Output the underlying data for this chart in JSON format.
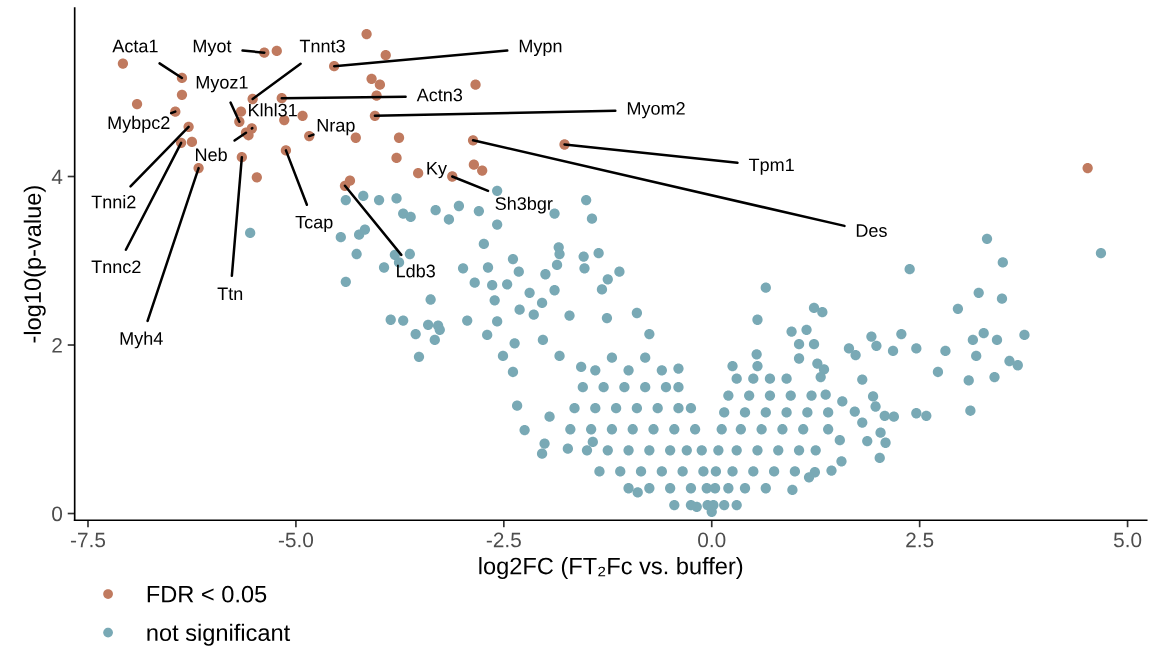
{
  "chart_data": {
    "type": "scatter",
    "xlabel": "log2FC (FT₂Fc vs. buffer)",
    "ylabel": "-log10(p-value)",
    "xlim": [
      -7.66,
      5.23
    ],
    "ylim": [
      -0.08,
      6.0
    ],
    "xticks": [
      {
        "value": -7.5,
        "label": "-7.5"
      },
      {
        "value": -5.0,
        "label": "-5.0"
      },
      {
        "value": -2.5,
        "label": "-2.5"
      },
      {
        "value": 0,
        "label": "0.0"
      },
      {
        "value": 2.5,
        "label": "2.5"
      },
      {
        "value": 5.0,
        "label": "5.0"
      }
    ],
    "yticks": [
      0,
      2,
      4
    ],
    "grid": false,
    "legend": "bottom",
    "marker": "circle",
    "series": [
      {
        "name": "FDR < 0.05",
        "color": "#c07a5f",
        "x": [
          -4.15,
          -5.38,
          -5.23,
          -3.92,
          -4.54,
          -7.08,
          -6.37,
          -4.09,
          -3.99,
          -2.84,
          -6.37,
          -5.52,
          -5.17,
          -4.03,
          -6.91,
          -6.45,
          -5.66,
          -5.68,
          -5.14,
          -4.92,
          -4.05,
          -6.29,
          -5.53,
          -5.6,
          -5.57,
          -4.84,
          -4.28,
          -3.76,
          -2.87,
          -6.38,
          -6.25,
          -5.12,
          -5.65,
          -3.79,
          -6.17,
          -2.86,
          -2.76,
          -3.12,
          -3.53,
          -5.47,
          -4.35,
          -4.41,
          -1.77,
          4.52
        ],
        "values": [
          5.69,
          5.47,
          5.49,
          5.44,
          5.31,
          5.34,
          5.17,
          5.16,
          5.09,
          5.09,
          4.97,
          4.92,
          4.93,
          4.96,
          4.86,
          4.77,
          4.77,
          4.65,
          4.67,
          4.72,
          4.72,
          4.59,
          4.57,
          4.52,
          4.49,
          4.48,
          4.46,
          4.46,
          4.43,
          4.4,
          4.41,
          4.31,
          4.23,
          4.22,
          4.1,
          4.14,
          4.07,
          4.0,
          4.04,
          3.99,
          3.95,
          3.89,
          4.38,
          4.1
        ]
      },
      {
        "name": "not significant",
        "color": "#79a9b5",
        "x": [
          -5.55,
          -4.4,
          -4.19,
          -4.0,
          -3.79,
          -3.71,
          -3.62,
          -3.32,
          -3.16,
          -3.04,
          -2.8,
          -2.58,
          -2.58,
          -4.46,
          -4.24,
          -4.17,
          -4.27,
          -3.94,
          -3.81,
          -3.76,
          -3.63,
          -4.4,
          -3.38,
          -2.74,
          -2.99,
          -2.85,
          -2.69,
          -2.64,
          -2.46,
          -2.39,
          -2.61,
          -3.86,
          -3.71,
          -3.41,
          -3.29,
          -2.94,
          -2.58,
          -1.51,
          -1.44,
          -1.89,
          -1.84,
          -1.83,
          -1.54,
          -1.36,
          -1.53,
          -1.11,
          -1.86,
          -2.0,
          -2.32,
          -1.25,
          -1.32,
          -1.89,
          -2.19,
          -3.56,
          -3.52,
          -3.33,
          -3.27,
          -2.7,
          -2.39,
          -2.34,
          -2.25,
          -2.04,
          -1.73,
          -2.01,
          -1.95,
          -2.51,
          -2.37,
          -2.03,
          -1.83,
          -1.26,
          -0.9,
          -0.75,
          -0.4,
          -1.71,
          -2.14,
          -2.31,
          -2.04,
          -1.57,
          -1.43,
          -0.89,
          -0.18,
          4.68,
          3.31,
          3.5,
          2.38,
          3.21,
          3.49,
          2.96,
          0.65,
          0.55,
          1.23,
          1.33,
          0.96,
          1.14,
          1.05,
          1.23,
          1.05,
          0.54,
          1.92,
          1.98,
          2.28,
          1.65,
          1.73,
          2.18,
          2.46,
          2.81,
          3.14,
          3.27,
          3.43,
          3.76,
          3.18,
          3.58,
          3.68,
          2.72,
          3.09,
          3.4,
          3.11,
          1.81,
          1.94,
          1.97,
          1.72,
          1.81,
          2.08,
          2.19,
          2.46,
          2.58,
          2.03,
          1.87,
          2.09,
          2.02,
          1.54,
          1.56,
          1.44,
          1.24,
          1.17,
          0.97,
          1.27,
          1.35,
          1.37,
          1.57,
          1.31,
          -1.55,
          -1.3,
          -1.05,
          -0.8,
          -0.55,
          -0.4,
          -1.65,
          -1.4,
          -1.15,
          -0.9,
          -0.65,
          -0.4,
          -0.25,
          -1.7,
          -1.45,
          -1.2,
          -0.95,
          -0.7,
          -0.45,
          -0.2,
          -1.5,
          -1.25,
          -1.0,
          -0.75,
          -0.5,
          -0.3,
          -0.12,
          -1.35,
          -1.1,
          -0.85,
          -0.6,
          -0.35,
          -0.1,
          -1.0,
          -0.75,
          -0.5,
          -0.25,
          -0.06,
          -0.45,
          -0.25,
          -0.05,
          0.0,
          -1.4,
          -1.0,
          -0.6,
          -1.2,
          -0.8,
          0.3,
          0.5,
          0.7,
          0.9,
          0.2,
          0.45,
          0.7,
          0.95,
          1.2,
          0.15,
          0.4,
          0.65,
          0.9,
          1.15,
          1.4,
          0.12,
          0.35,
          0.6,
          0.85,
          1.1,
          1.4,
          0.08,
          0.3,
          0.55,
          0.8,
          1.05,
          1.25,
          0.05,
          0.25,
          0.5,
          0.75,
          1.0,
          0.04,
          0.2,
          0.4,
          0.65,
          0.02,
          0.15,
          0.3,
          0.25,
          0.55
        ],
        "values": [
          3.33,
          3.72,
          3.77,
          3.72,
          3.74,
          3.56,
          3.52,
          3.6,
          3.49,
          3.65,
          3.59,
          3.83,
          3.43,
          3.28,
          3.31,
          3.37,
          3.08,
          2.92,
          3.07,
          2.98,
          3.08,
          2.75,
          2.54,
          3.2,
          2.91,
          2.74,
          2.92,
          2.71,
          2.72,
          3.02,
          2.53,
          2.3,
          2.29,
          2.24,
          2.23,
          2.29,
          2.28,
          3.72,
          3.5,
          3.56,
          3.16,
          3.08,
          3.05,
          3.09,
          2.91,
          2.87,
          2.95,
          2.84,
          2.87,
          2.78,
          2.66,
          2.65,
          2.62,
          2.13,
          1.86,
          2.06,
          2.18,
          2.12,
          1.68,
          1.28,
          0.99,
          0.71,
          0.77,
          0.83,
          1.15,
          1.87,
          2.02,
          2.06,
          1.87,
          2.32,
          2.38,
          2.13,
          1.72,
          2.35,
          2.36,
          2.42,
          2.5,
          1.74,
          0.85,
          0.25,
          0.08,
          3.09,
          3.26,
          2.98,
          2.9,
          2.62,
          2.55,
          2.43,
          2.68,
          2.3,
          2.44,
          2.39,
          2.16,
          2.18,
          2.01,
          2.01,
          1.84,
          1.89,
          2.1,
          1.99,
          2.13,
          1.96,
          1.88,
          1.93,
          1.96,
          1.93,
          2.06,
          2.14,
          2.06,
          2.12,
          1.87,
          1.81,
          1.76,
          1.68,
          1.58,
          1.62,
          1.22,
          1.59,
          1.39,
          1.27,
          1.21,
          1.08,
          1.16,
          1.15,
          1.19,
          1.16,
          0.96,
          0.86,
          0.84,
          0.66,
          0.87,
          0.62,
          0.51,
          0.49,
          0.43,
          0.28,
          1.78,
          1.71,
          1.41,
          1.33,
          1.62,
          1.5,
          1.5,
          1.5,
          1.5,
          1.5,
          1.5,
          1.25,
          1.25,
          1.25,
          1.25,
          1.25,
          1.25,
          1.25,
          1.0,
          1.0,
          1.0,
          1.0,
          1.0,
          1.0,
          1.0,
          0.75,
          0.75,
          0.75,
          0.75,
          0.75,
          0.75,
          0.75,
          0.5,
          0.5,
          0.5,
          0.5,
          0.5,
          0.5,
          0.3,
          0.3,
          0.3,
          0.3,
          0.3,
          0.1,
          0.1,
          0.1,
          0.02,
          1.7,
          1.7,
          1.7,
          1.85,
          1.85,
          1.6,
          1.6,
          1.6,
          1.6,
          1.4,
          1.4,
          1.4,
          1.4,
          1.4,
          1.2,
          1.2,
          1.2,
          1.2,
          1.2,
          1.2,
          1.0,
          1.0,
          1.0,
          1.0,
          1.0,
          1.0,
          0.75,
          0.75,
          0.75,
          0.75,
          0.75,
          0.75,
          0.5,
          0.5,
          0.5,
          0.5,
          0.5,
          0.3,
          0.3,
          0.3,
          0.3,
          0.1,
          0.1,
          0.1,
          1.75,
          1.75
        ]
      }
    ],
    "annotations": [
      {
        "text": "Acta1",
        "x": -6.37,
        "y": 5.17
      },
      {
        "text": "Myot",
        "x": -5.38,
        "y": 5.47
      },
      {
        "text": "Tnnt3",
        "x": -5.52,
        "y": 4.92
      },
      {
        "text": "Mypn",
        "x": -4.54,
        "y": 5.31
      },
      {
        "text": "Myoz1",
        "x": -5.68,
        "y": 4.65
      },
      {
        "text": "Actn3",
        "x": -5.17,
        "y": 4.93
      },
      {
        "text": "Mybpc2",
        "x": -6.45,
        "y": 4.77
      },
      {
        "text": "Klhl31",
        "x": -5.53,
        "y": 4.57
      },
      {
        "text": "Nrap",
        "x": -4.84,
        "y": 4.48
      },
      {
        "text": "Myom2",
        "x": -4.05,
        "y": 4.72
      },
      {
        "text": "Neb",
        "x": -5.6,
        "y": 4.52
      },
      {
        "text": "Ky",
        "x": -3.53,
        "y": 4.04
      },
      {
        "text": "Tpm1",
        "x": -1.77,
        "y": 4.38
      },
      {
        "text": "Tnni2",
        "x": -6.29,
        "y": 4.59
      },
      {
        "text": "Tcap",
        "x": -5.12,
        "y": 4.31
      },
      {
        "text": "Sh3bgr",
        "x": -3.12,
        "y": 4.0
      },
      {
        "text": "Des",
        "x": -2.87,
        "y": 4.43
      },
      {
        "text": "Ldb3",
        "x": -4.41,
        "y": 3.89
      },
      {
        "text": "Tnnc2",
        "x": -6.38,
        "y": 4.4
      },
      {
        "text": "Ttn",
        "x": -5.65,
        "y": 4.23
      },
      {
        "text": "Myh4",
        "x": -6.17,
        "y": 4.1
      }
    ]
  }
}
